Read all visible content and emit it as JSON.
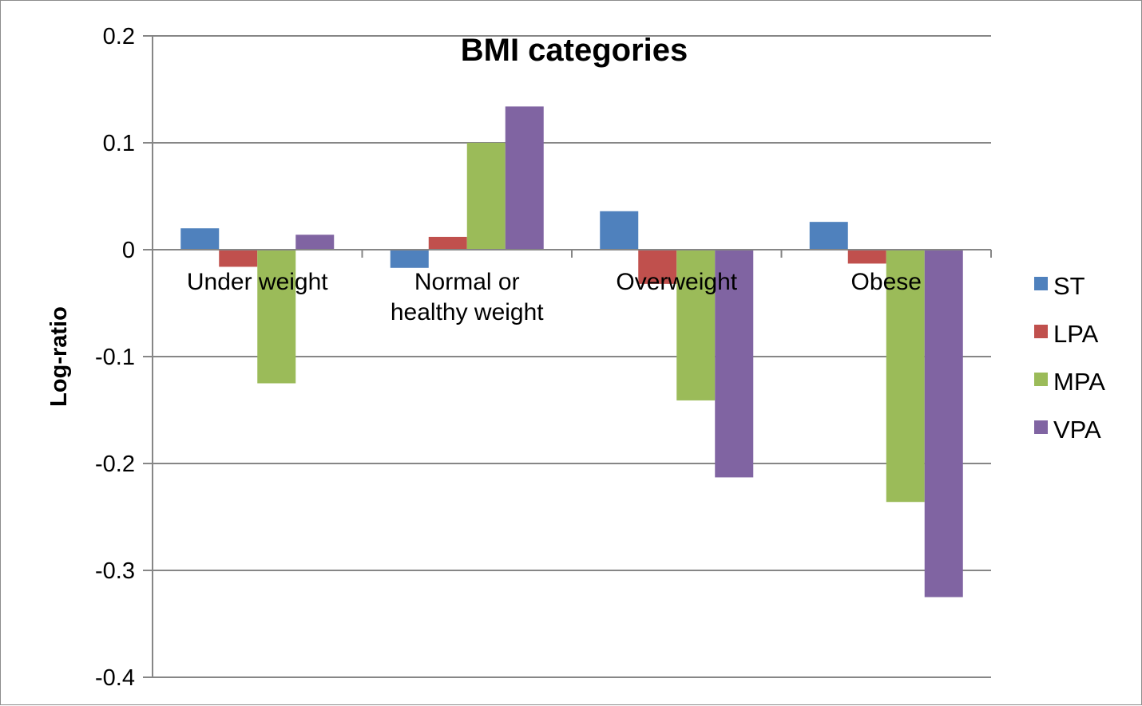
{
  "chart_data": {
    "type": "bar",
    "title": "BMI categories",
    "ylabel": "Log-ratio",
    "xlabel": "",
    "ylim": [
      -0.4,
      0.2
    ],
    "yticks": [
      0.2,
      0.1,
      0,
      -0.1,
      -0.2,
      -0.3,
      -0.4
    ],
    "ytick_labels": [
      "0.2",
      "0.1",
      "0",
      "-0.1",
      "-0.2",
      "-0.3",
      "-0.4"
    ],
    "grid": true,
    "legend_position": "right",
    "categories": [
      [
        "Under weight"
      ],
      [
        "Normal or",
        "healthy weight"
      ],
      [
        "Overweight"
      ],
      [
        "Obese"
      ]
    ],
    "series": [
      {
        "name": "ST",
        "color": "#4F81BD",
        "values": [
          0.02,
          -0.017,
          0.036,
          0.026
        ]
      },
      {
        "name": "LPA",
        "color": "#C0504D",
        "values": [
          -0.016,
          0.012,
          -0.032,
          -0.013
        ]
      },
      {
        "name": "MPA",
        "color": "#9BBB59",
        "values": [
          -0.125,
          0.1,
          -0.141,
          -0.236
        ]
      },
      {
        "name": "VPA",
        "color": "#8064A2",
        "values": [
          0.014,
          0.134,
          -0.213,
          -0.325
        ]
      }
    ]
  }
}
